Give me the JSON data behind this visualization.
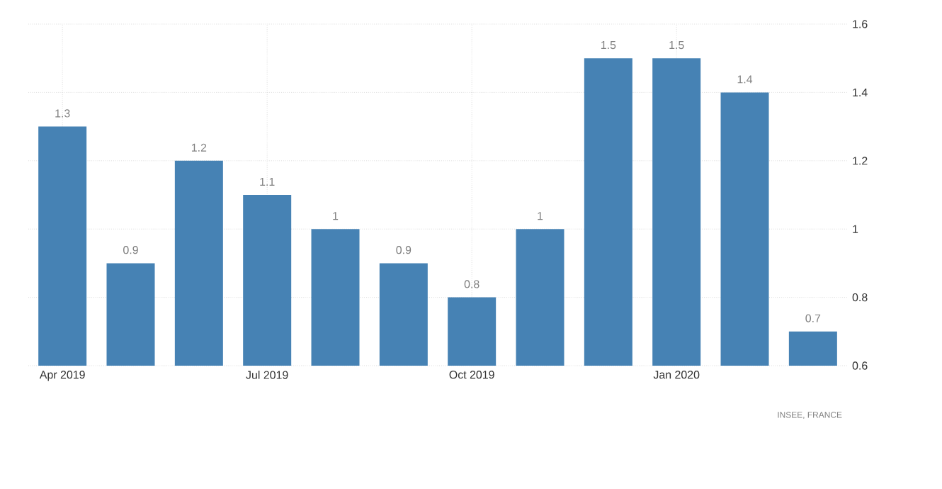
{
  "chart_data": {
    "type": "bar",
    "categories": [
      "Apr 2019",
      null,
      null,
      "Jul 2019",
      null,
      null,
      "Oct 2019",
      null,
      null,
      "Jan 2020",
      null,
      null
    ],
    "values": [
      1.3,
      0.9,
      1.2,
      1.1,
      1,
      0.9,
      0.8,
      1,
      1.5,
      1.5,
      1.4,
      0.7
    ],
    "color": "#4682b4",
    "ylim": [
      0.6,
      1.6
    ],
    "yticks": [
      0.6,
      0.8,
      1,
      1.2,
      1.4,
      1.6
    ],
    "grid": true,
    "data_labels": true,
    "annotations": [
      "INSEE, FRANCE"
    ]
  }
}
